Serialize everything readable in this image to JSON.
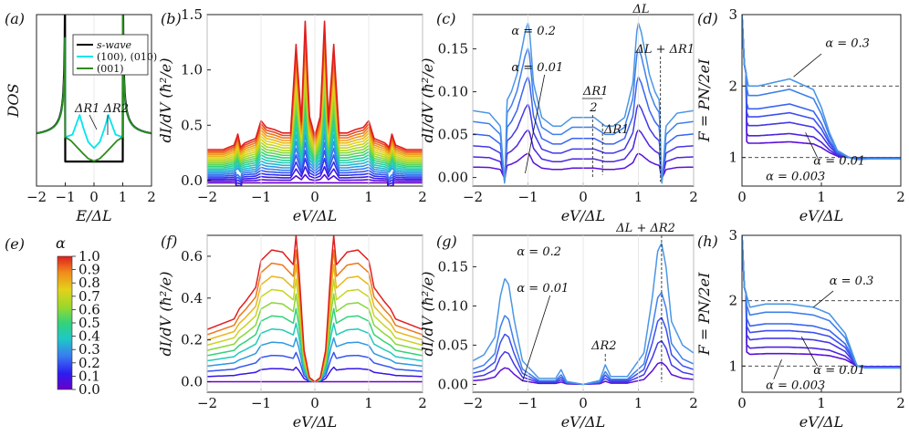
{
  "figure": {
    "colorbar": {
      "label": "α",
      "ticks": [
        "1.0",
        "0.9",
        "0.8",
        "0.7",
        "0.6",
        "0.5",
        "0.4",
        "0.3",
        "0.2",
        "0.1",
        "0.0"
      ]
    }
  },
  "chart_data": [
    {
      "id": "a",
      "panel_label": "(a)",
      "type": "line",
      "xlabel": "E/Δ_L",
      "ylabel": "DOS",
      "xlim": [
        -2,
        2
      ],
      "xticks": [
        "−2",
        "−1",
        "0",
        "1",
        "2"
      ],
      "yticks": [],
      "legend": {
        "position": "top-right",
        "entries": [
          {
            "label": "s-wave",
            "color": "#000000"
          },
          {
            "label": "(100), (010)",
            "color": "#00e5ee"
          },
          {
            "label": "(001)",
            "color": "#2e8b1e"
          }
        ]
      },
      "series": [
        {
          "name": "s-wave",
          "color": "#000000",
          "x": [
            -2,
            -1.5,
            -1.2,
            -1.06,
            -1.01,
            -0.99,
            -0.9,
            -0.5,
            0,
            0.5,
            0.9,
            0.99,
            1.01,
            1.06,
            1.2,
            1.5,
            2
          ],
          "y": [
            1.15,
            1.4,
            1.9,
            3.2,
            5.5,
            0.2,
            0,
            0,
            0,
            0,
            0,
            0.2,
            5.5,
            3.2,
            1.9,
            1.4,
            1.15
          ]
        },
        {
          "name": "(100), (010)",
          "color": "#00e5ee",
          "x": [
            -1,
            -0.75,
            -0.5,
            -0.35,
            -0.2,
            0,
            0.2,
            0.35,
            0.5,
            0.75,
            1
          ],
          "y": [
            1,
            1.1,
            1.9,
            1.3,
            0.8,
            0.55,
            0.8,
            1.3,
            1.9,
            1.1,
            1
          ]
        },
        {
          "name": "(001)",
          "color": "#2e8b1e",
          "x": [
            -1,
            -0.8,
            -0.6,
            -0.4,
            -0.2,
            0,
            0.2,
            0.4,
            0.6,
            0.8,
            1
          ],
          "y": [
            1,
            0.85,
            0.6,
            0.35,
            0.12,
            0.02,
            0.12,
            0.35,
            0.6,
            0.85,
            1
          ]
        }
      ],
      "annotations": [
        {
          "text": "Δ_R1 Δ_R2"
        }
      ]
    },
    {
      "id": "b",
      "panel_label": "(b)",
      "type": "line",
      "xlabel": "eV/Δ_L",
      "ylabel": "dI/dV (ħ²/e)",
      "xlim": [
        -2,
        2
      ],
      "ylim": [
        -0.05,
        1.5
      ],
      "xticks": [
        "−2",
        "−1",
        "0",
        "1",
        "2"
      ],
      "yticks": [
        "0.0",
        "0.5",
        "1.0",
        "1.5"
      ],
      "alphas": [
        0.0,
        0.05,
        0.1,
        0.15,
        0.2,
        0.25,
        0.3,
        0.35,
        0.4,
        0.45,
        0.5,
        0.55,
        0.6,
        0.65,
        0.7,
        0.75,
        0.8,
        0.85,
        0.9,
        0.95,
        1.0
      ],
      "profile_x": [
        0,
        0.1,
        0.18,
        0.25,
        0.35,
        0.45,
        0.6,
        0.75,
        0.9,
        1.0,
        1.1,
        1.3,
        1.38,
        1.43,
        1.5,
        1.7,
        2.0
      ],
      "profile_alpha1": [
        0.42,
        0.6,
        1.46,
        0.55,
        1.25,
        0.45,
        0.45,
        0.48,
        0.5,
        0.56,
        0.4,
        0.36,
        0.32,
        0.44,
        0.34,
        0.3,
        0.3
      ],
      "profile_alpha0": [
        0.0,
        0.0,
        0.01,
        0.0,
        0.01,
        0.0,
        0.0,
        0.0,
        0.0,
        0.0,
        0.0,
        0.0,
        0.0,
        0.0,
        0.0,
        0.0,
        0.0
      ]
    },
    {
      "id": "c",
      "panel_label": "(c)",
      "type": "line",
      "xlabel": "eV/Δ_L",
      "ylabel": "dI/dV (ħ²/e)",
      "xlim": [
        -2,
        2
      ],
      "ylim": [
        -0.01,
        0.19
      ],
      "xticks": [
        "−2",
        "−1",
        "0",
        "1",
        "2"
      ],
      "yticks": [
        "0.00",
        "0.05",
        "0.10",
        "0.15"
      ],
      "alphas": [
        0.01,
        0.03,
        0.06,
        0.1,
        0.15,
        0.2
      ],
      "profile_x": [
        0,
        0.2,
        0.3,
        0.4,
        0.55,
        0.75,
        0.9,
        0.97,
        1.0,
        1.05,
        1.2,
        1.3,
        1.38,
        1.42,
        1.5,
        1.7,
        2.0
      ],
      "profile_alpha_0_2": [
        0.07,
        0.07,
        0.065,
        0.06,
        0.06,
        0.07,
        0.11,
        0.17,
        0.18,
        0.17,
        0.12,
        0.1,
        0.09,
        -0.01,
        0.06,
        0.075,
        0.078
      ],
      "annotations": [
        {
          "text": "α = 0.2"
        },
        {
          "text": "α = 0.01"
        },
        {
          "text": "Δ_L"
        },
        {
          "text": "Δ_L + Δ_R1"
        },
        {
          "text": "Δ_R1"
        },
        {
          "text": "2"
        },
        {
          "text": "Δ_R1"
        }
      ]
    },
    {
      "id": "d",
      "panel_label": "(d)",
      "type": "line",
      "xlabel": "eV/Δ_L",
      "ylabel": "F = P_N/2eI",
      "xlim": [
        0,
        2
      ],
      "ylim": [
        0.6,
        3.0
      ],
      "xticks": [
        "0",
        "1",
        "2"
      ],
      "yticks": [
        "1",
        "2",
        "3"
      ],
      "reference_lines_y": [
        1,
        2
      ],
      "alphas": [
        0.003,
        0.01,
        0.03,
        0.06,
        0.1,
        0.2,
        0.3
      ],
      "profile_x": [
        0,
        0.03,
        0.08,
        0.2,
        0.4,
        0.6,
        0.8,
        0.9,
        1.0,
        1.1,
        1.2,
        1.35,
        1.45,
        1.6,
        2.0
      ],
      "profile_alpha_0_3": [
        3.0,
        2.3,
        2.0,
        2.0,
        2.05,
        2.1,
        2.0,
        1.95,
        1.7,
        1.35,
        1.1,
        1.0,
        0.97,
        0.98,
        0.98
      ],
      "annotations": [
        {
          "text": "α = 0.3"
        },
        {
          "text": "α = 0.01"
        },
        {
          "text": "α = 0.003"
        }
      ]
    },
    {
      "id": "f",
      "panel_label": "(f)",
      "type": "line",
      "xlabel": "eV/Δ_L",
      "ylabel": "dI/dV (ħ²/e)",
      "xlim": [
        -2,
        2
      ],
      "ylim": [
        -0.05,
        0.7
      ],
      "xticks": [
        "−2",
        "−1",
        "0",
        "1",
        "2"
      ],
      "yticks": [
        "0.0",
        "0.2",
        "0.4",
        "0.6"
      ],
      "alphas": [
        0.0,
        0.1,
        0.2,
        0.3,
        0.4,
        0.5,
        0.6,
        0.7,
        0.8,
        0.9,
        1.0
      ],
      "profile_x": [
        0,
        0.1,
        0.2,
        0.3,
        0.35,
        0.4,
        0.6,
        0.8,
        1.0,
        1.1,
        1.3,
        1.4,
        1.5,
        1.7,
        2.0
      ],
      "profile_alpha1": [
        0.0,
        0.02,
        0.15,
        0.55,
        0.7,
        0.56,
        0.62,
        0.63,
        0.58,
        0.45,
        0.38,
        0.35,
        0.3,
        0.28,
        0.25
      ],
      "profile_alpha0": [
        0.0,
        0.0,
        0.0,
        0.0,
        0.0,
        0.0,
        0.0,
        0.0,
        0.0,
        0.0,
        0.0,
        0.0,
        0.0,
        0.0,
        0.0
      ]
    },
    {
      "id": "g",
      "panel_label": "(g)",
      "type": "line",
      "xlabel": "eV/Δ_L",
      "ylabel": "dI/dV (ħ²/e)",
      "xlim": [
        -2,
        2
      ],
      "ylim": [
        -0.01,
        0.19
      ],
      "xticks": [
        "−2",
        "−1",
        "0",
        "1",
        "2"
      ],
      "yticks": [
        "0.00",
        "0.05",
        "0.10",
        "0.15"
      ],
      "alphas": [
        0.01,
        0.03,
        0.06,
        0.1,
        0.2
      ],
      "profile_x": [
        0,
        0.3,
        0.4,
        0.5,
        0.8,
        1.1,
        1.25,
        1.35,
        1.42,
        1.5,
        1.6,
        1.8,
        2.0
      ],
      "profile_alpha_0_2": [
        0.0,
        0.005,
        0.025,
        0.01,
        0.01,
        0.04,
        0.11,
        0.17,
        0.18,
        0.15,
        0.08,
        0.05,
        0.04
      ],
      "annotations": [
        {
          "text": "α = 0.2"
        },
        {
          "text": "α = 0.01"
        },
        {
          "text": "Δ_R2"
        },
        {
          "text": "Δ_L + Δ_R2"
        }
      ]
    },
    {
      "id": "h",
      "panel_label": "(h)",
      "type": "line",
      "xlabel": "eV/Δ_L",
      "ylabel": "F = P_N/2eI",
      "xlim": [
        0,
        2
      ],
      "ylim": [
        0.6,
        3.0
      ],
      "xticks": [
        "0",
        "1",
        "2"
      ],
      "yticks": [
        "1",
        "2",
        "3"
      ],
      "reference_lines_y": [
        1,
        2
      ],
      "alphas": [
        0.003,
        0.01,
        0.03,
        0.06,
        0.1,
        0.2,
        0.3
      ],
      "profile_x": [
        0,
        0.03,
        0.1,
        0.3,
        0.6,
        0.9,
        1.1,
        1.3,
        1.45,
        1.55,
        1.7,
        2.0
      ],
      "profile_alpha_0_3": [
        3.0,
        2.2,
        1.9,
        1.95,
        1.95,
        1.9,
        1.8,
        1.5,
        1.0,
        0.97,
        0.97,
        0.97
      ],
      "annotations": [
        {
          "text": "α = 0.3"
        },
        {
          "text": "α = 0.01"
        },
        {
          "text": "α = 0.003"
        }
      ]
    }
  ]
}
